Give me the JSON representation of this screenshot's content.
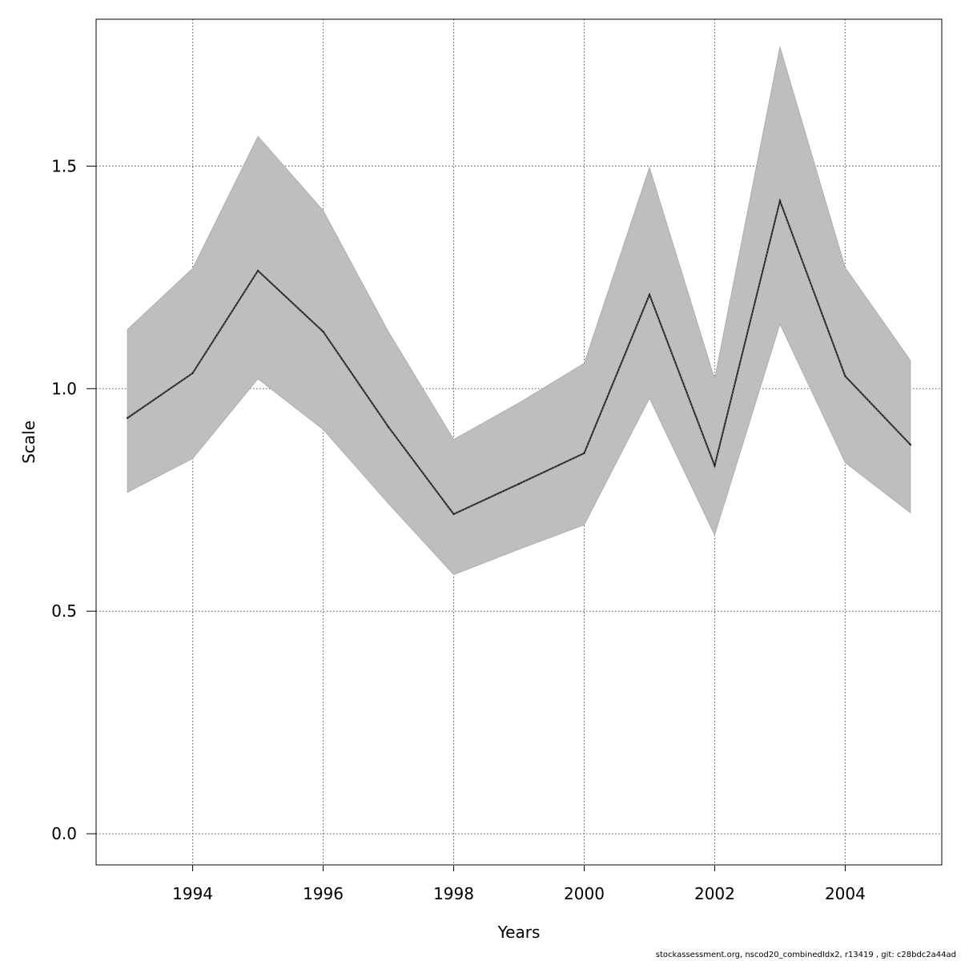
{
  "chart_data": {
    "type": "line",
    "xlabel": "Years",
    "ylabel": "Scale",
    "xlim": [
      1992.52,
      2005.48
    ],
    "ylim": [
      -0.07,
      1.83
    ],
    "x_ticks": [
      1994,
      1996,
      1998,
      2000,
      2002,
      2004
    ],
    "x_tick_labels": [
      "1994",
      "1996",
      "1998",
      "2000",
      "2002",
      "2004"
    ],
    "y_ticks": [
      0.0,
      0.5,
      1.0,
      1.5
    ],
    "y_tick_labels": [
      "0.0",
      "0.5",
      "1.0",
      "1.5"
    ],
    "grid": true,
    "x": [
      1993,
      1994,
      1995,
      1996,
      1997,
      1998,
      1999,
      2000,
      2001,
      2002,
      2003,
      2004,
      2005
    ],
    "series": [
      {
        "values": [
          0.934,
          1.035,
          1.265,
          1.128,
          0.914,
          0.718,
          0.786,
          0.855,
          1.211,
          0.827,
          1.422,
          1.028,
          0.874
        ],
        "lower": [
          0.767,
          0.843,
          1.022,
          0.908,
          0.742,
          0.582,
          0.639,
          0.694,
          0.978,
          0.671,
          1.145,
          0.834,
          0.721
        ],
        "upper": [
          1.133,
          1.27,
          1.567,
          1.4,
          1.128,
          0.886,
          0.968,
          1.057,
          1.497,
          1.022,
          1.768,
          1.272,
          1.063
        ],
        "line_color": "#222222",
        "band_color": "#bebebe"
      }
    ]
  },
  "footer": {
    "text": "stockassessment.org, nscod20_combinedIdx2, r13419 , git: c28bdc2a44ad"
  }
}
